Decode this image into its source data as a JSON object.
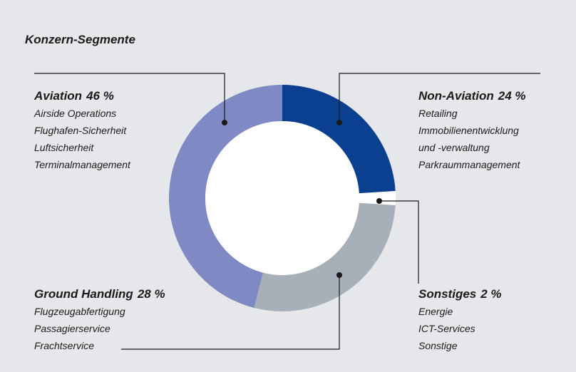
{
  "chart_data": {
    "type": "donut",
    "title": "Konzern-Segmente",
    "categories": [
      "Non-Aviation",
      "Sonstiges",
      "Ground Handling",
      "Aviation"
    ],
    "values": [
      24,
      2,
      28,
      46
    ],
    "value_labels": [
      "24 %",
      "2 %",
      "28 %",
      "46 %"
    ],
    "colors": [
      "#0b3f8f",
      "#ffffff",
      "#a7b0b8",
      "#7f8ac4"
    ],
    "details": [
      [
        "Retailing",
        "Immobilienentwicklung",
        "und -verwaltung",
        "Parkraummanagement"
      ],
      [
        "Energie",
        "ICT-Services",
        "Sonstige"
      ],
      [
        "Flugzeugabfertigung",
        "Passagierservice",
        "Frachtservice"
      ],
      [
        "Airside Operations",
        "Flughafen-Sicherheit",
        "Luftsicherheit",
        "Terminalmanagement"
      ]
    ]
  }
}
